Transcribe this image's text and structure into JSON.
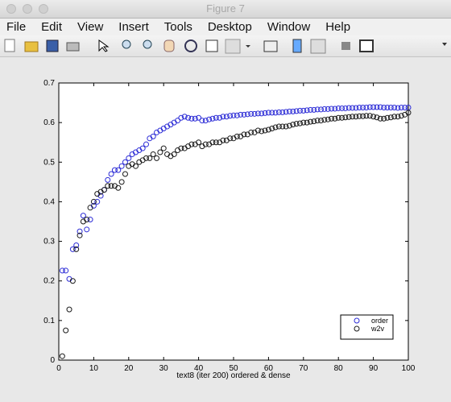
{
  "window": {
    "title": "Figure 7",
    "menu": [
      "File",
      "Edit",
      "View",
      "Insert",
      "Tools",
      "Desktop",
      "Window",
      "Help"
    ]
  },
  "chart_data": {
    "type": "scatter",
    "xlabel": "text8 (iter 200) ordered & dense",
    "xlim": [
      0,
      100
    ],
    "xticks": [
      0,
      10,
      20,
      30,
      40,
      50,
      60,
      70,
      80,
      90,
      100
    ],
    "ylim": [
      0,
      0.7
    ],
    "yticks": [
      0,
      0.1,
      0.2,
      0.3,
      0.4,
      0.5,
      0.6,
      0.7
    ],
    "legend": "lower right",
    "x": [
      1,
      2,
      3,
      4,
      5,
      6,
      7,
      8,
      9,
      10,
      11,
      12,
      13,
      14,
      15,
      16,
      17,
      18,
      19,
      20,
      21,
      22,
      23,
      24,
      25,
      26,
      27,
      28,
      29,
      30,
      31,
      32,
      33,
      34,
      35,
      36,
      37,
      38,
      39,
      40,
      41,
      42,
      43,
      44,
      45,
      46,
      47,
      48,
      49,
      50,
      51,
      52,
      53,
      54,
      55,
      56,
      57,
      58,
      59,
      60,
      61,
      62,
      63,
      64,
      65,
      66,
      67,
      68,
      69,
      70,
      71,
      72,
      73,
      74,
      75,
      76,
      77,
      78,
      79,
      80,
      81,
      82,
      83,
      84,
      85,
      86,
      87,
      88,
      89,
      90,
      91,
      92,
      93,
      94,
      95,
      96,
      97,
      98,
      99,
      100
    ],
    "series": [
      {
        "name": "order",
        "color": "#2b2bd6",
        "values": [
          0.226,
          0.226,
          0.205,
          0.28,
          0.29,
          0.325,
          0.365,
          0.33,
          0.355,
          0.39,
          0.4,
          0.415,
          0.43,
          0.455,
          0.47,
          0.48,
          0.48,
          0.49,
          0.5,
          0.51,
          0.52,
          0.525,
          0.53,
          0.535,
          0.545,
          0.56,
          0.565,
          0.575,
          0.58,
          0.585,
          0.59,
          0.595,
          0.6,
          0.605,
          0.612,
          0.615,
          0.612,
          0.61,
          0.61,
          0.612,
          0.605,
          0.605,
          0.608,
          0.61,
          0.612,
          0.612,
          0.615,
          0.615,
          0.617,
          0.618,
          0.618,
          0.62,
          0.62,
          0.621,
          0.622,
          0.622,
          0.623,
          0.623,
          0.624,
          0.625,
          0.625,
          0.625,
          0.626,
          0.626,
          0.627,
          0.628,
          0.628,
          0.629,
          0.63,
          0.63,
          0.631,
          0.632,
          0.632,
          0.633,
          0.633,
          0.634,
          0.634,
          0.635,
          0.635,
          0.636,
          0.636,
          0.636,
          0.637,
          0.637,
          0.637,
          0.638,
          0.638,
          0.638,
          0.639,
          0.639,
          0.639,
          0.639,
          0.638,
          0.638,
          0.638,
          0.638,
          0.637,
          0.638,
          0.638,
          0.638
        ]
      },
      {
        "name": "w2v",
        "color": "#1a1a1a",
        "values": [
          0.01,
          0.075,
          0.128,
          0.2,
          0.28,
          0.315,
          0.35,
          0.355,
          0.385,
          0.4,
          0.42,
          0.425,
          0.43,
          0.44,
          0.44,
          0.44,
          0.435,
          0.45,
          0.47,
          0.49,
          0.495,
          0.49,
          0.5,
          0.505,
          0.51,
          0.51,
          0.52,
          0.51,
          0.525,
          0.535,
          0.52,
          0.515,
          0.52,
          0.53,
          0.535,
          0.535,
          0.54,
          0.545,
          0.545,
          0.55,
          0.54,
          0.545,
          0.545,
          0.55,
          0.55,
          0.55,
          0.555,
          0.555,
          0.56,
          0.56,
          0.565,
          0.565,
          0.57,
          0.57,
          0.575,
          0.575,
          0.58,
          0.578,
          0.58,
          0.582,
          0.585,
          0.588,
          0.59,
          0.59,
          0.59,
          0.592,
          0.595,
          0.597,
          0.598,
          0.6,
          0.6,
          0.602,
          0.603,
          0.605,
          0.605,
          0.607,
          0.608,
          0.61,
          0.61,
          0.612,
          0.612,
          0.613,
          0.614,
          0.615,
          0.615,
          0.616,
          0.616,
          0.617,
          0.617,
          0.615,
          0.613,
          0.61,
          0.61,
          0.612,
          0.613,
          0.615,
          0.615,
          0.617,
          0.62,
          0.625
        ]
      }
    ]
  }
}
